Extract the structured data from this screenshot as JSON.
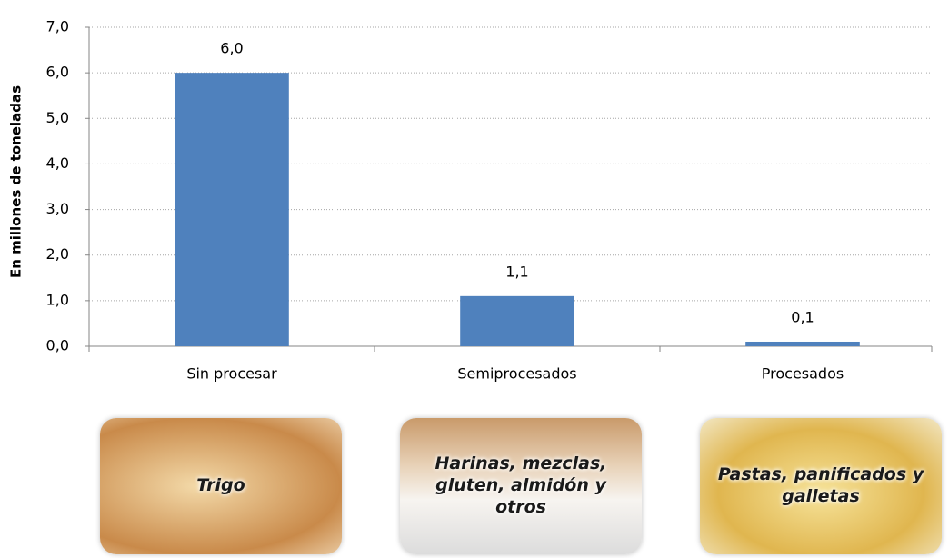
{
  "chart_data": {
    "type": "bar",
    "y_axis_label": "En millones de toneladas",
    "categories": [
      "Sin procesar",
      "Semiprocesados",
      "Procesados"
    ],
    "values": [
      6.0,
      1.1,
      0.1
    ],
    "value_labels": [
      "6,0",
      "1,1",
      "0,1"
    ],
    "color": "#4f81bd",
    "ylim": [
      0,
      7
    ],
    "yticks": [
      {
        "value": 0,
        "label": "0,0"
      },
      {
        "value": 1,
        "label": "1,0"
      },
      {
        "value": 2,
        "label": "2,0"
      },
      {
        "value": 3,
        "label": "3,0"
      },
      {
        "value": 4,
        "label": "4,0"
      },
      {
        "value": 5,
        "label": "5,0"
      },
      {
        "value": 6,
        "label": "6,0"
      },
      {
        "value": 7,
        "label": "7,0"
      }
    ],
    "grid": true,
    "annotations": [
      "Trigo",
      "Harinas, mezclas, gluten, almidón y otros",
      "Pastas, panificados y galletas"
    ]
  }
}
